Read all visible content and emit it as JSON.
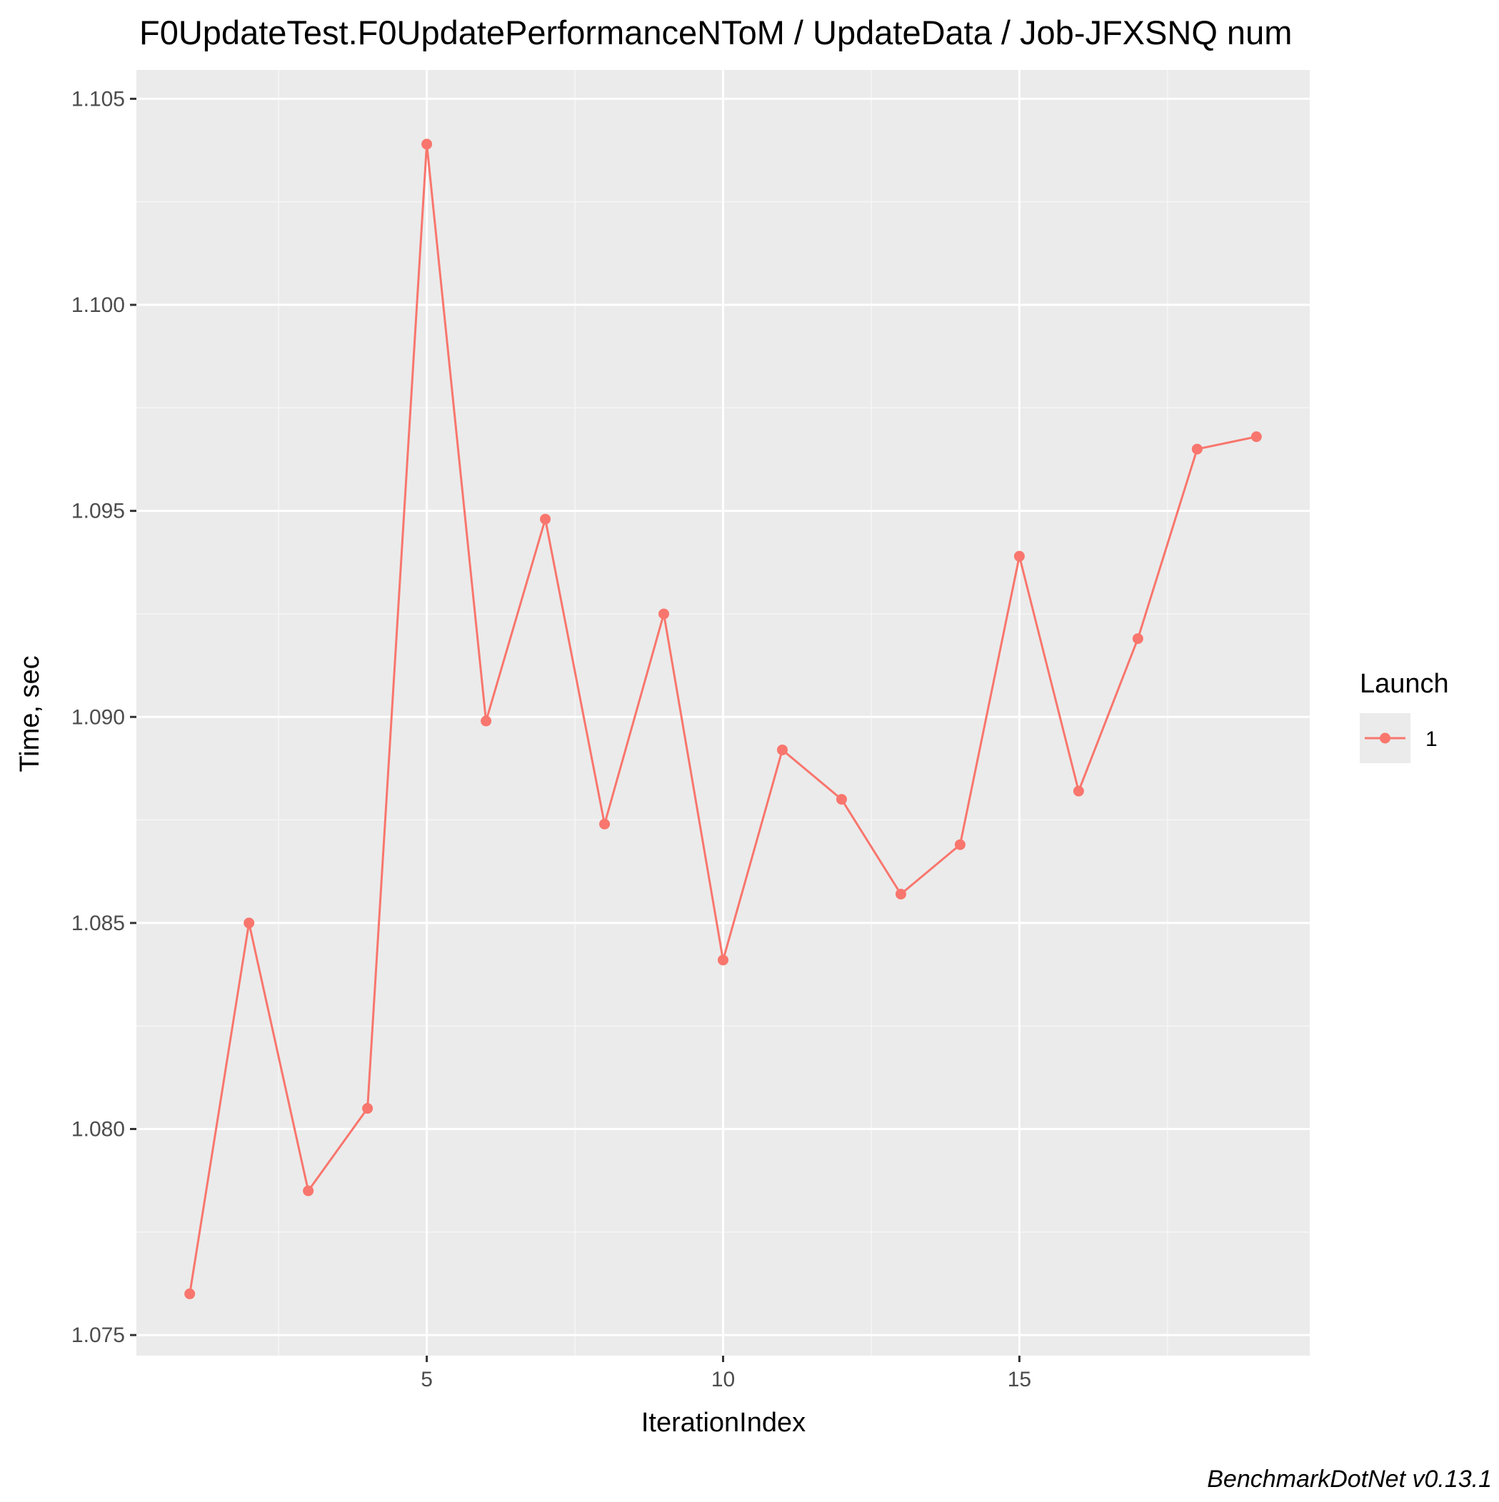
{
  "chart_data": {
    "type": "line",
    "title": "F0UpdateTest.F0UpdatePerformanceNToM / UpdateData / Job-JFXSNQ num",
    "xlabel": "IterationIndex",
    "ylabel": "Time, sec",
    "caption": "BenchmarkDotNet v0.13.1",
    "xlim": [
      0.1,
      19.9
    ],
    "ylim": [
      1.0745,
      1.1057
    ],
    "x_ticks": [
      5,
      10,
      15
    ],
    "x_tick_labels": [
      "5",
      "10",
      "15"
    ],
    "x_minor_ticks": [
      2.5,
      7.5,
      12.5,
      17.5
    ],
    "y_ticks": [
      1.075,
      1.08,
      1.085,
      1.09,
      1.095,
      1.1,
      1.105
    ],
    "y_tick_labels": [
      "1.075",
      "1.080",
      "1.085",
      "1.090",
      "1.095",
      "1.100",
      "1.105"
    ],
    "y_minor_ticks": [
      1.0775,
      1.0825,
      1.0875,
      1.0925,
      1.0975,
      1.1025
    ],
    "grid": true,
    "legend": {
      "title": "Launch",
      "position": "right"
    },
    "series": [
      {
        "name": "1",
        "color": "#f8766d",
        "x": [
          1,
          2,
          3,
          4,
          5,
          6,
          7,
          8,
          9,
          10,
          11,
          12,
          13,
          14,
          15,
          16,
          17,
          18,
          19
        ],
        "y": [
          1.076,
          1.085,
          1.0785,
          1.0805,
          1.1039,
          1.0899,
          1.0948,
          1.0874,
          1.0925,
          1.0841,
          1.0892,
          1.088,
          1.0857,
          1.0869,
          1.0939,
          1.0882,
          1.0919,
          1.0965,
          1.0968
        ]
      }
    ],
    "colors": {
      "panel_background": "#ebebeb",
      "grid_major": "#ffffff",
      "grid_minor": "#f5f5f5",
      "tick_color": "#333333"
    }
  }
}
